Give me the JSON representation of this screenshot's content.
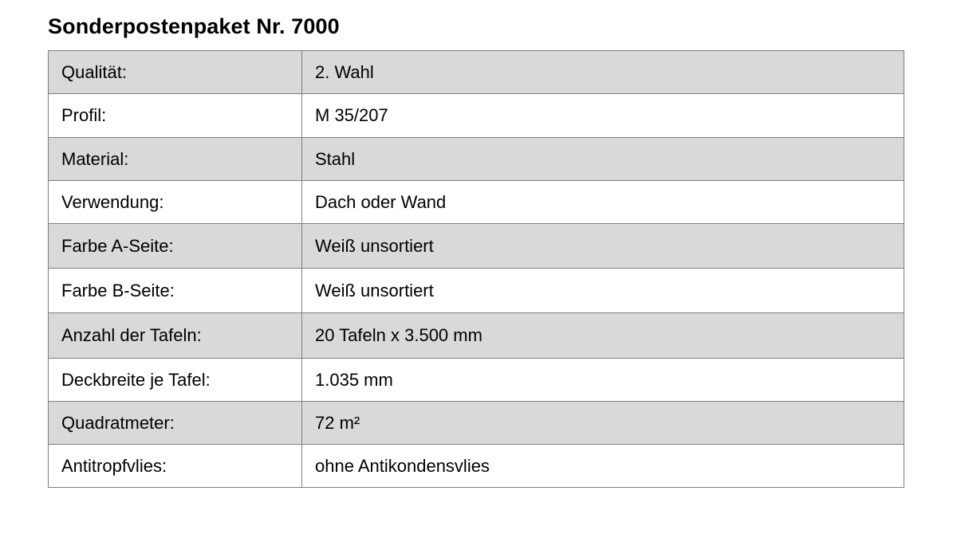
{
  "title": "Sonderpostenpaket Nr. 7000",
  "rows": [
    {
      "label": "Qualität:",
      "value": "2. Wahl"
    },
    {
      "label": "Profil:",
      "value": "M 35/207"
    },
    {
      "label": "Material:",
      "value": "Stahl"
    },
    {
      "label": "Verwendung:",
      "value": "Dach oder Wand"
    },
    {
      "label": "Farbe A-Seite:",
      "value": "Weiß unsortiert"
    },
    {
      "label": "Farbe B-Seite:",
      "value": "Weiß unsortiert"
    },
    {
      "label": "Anzahl der Tafeln:",
      "value": "20 Tafeln x 3.500 mm"
    },
    {
      "label": "Deckbreite je Tafel:",
      "value": "1.035 mm"
    },
    {
      "label": "Quadratmeter:",
      "value": "72 m²"
    },
    {
      "label": "Antitropfvlies:",
      "value": "ohne Antikondensvlies"
    }
  ],
  "colors": {
    "stripe": "#d9d9d9",
    "border": "#7f7f7f"
  }
}
